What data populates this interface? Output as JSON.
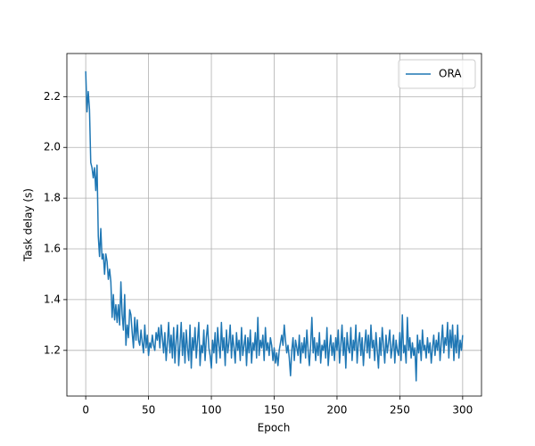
{
  "chart_data": {
    "type": "line",
    "xlabel": "Epoch",
    "ylabel": "Task delay (s)",
    "xlim": [
      -15,
      315
    ],
    "ylim": [
      1.02,
      2.37
    ],
    "xticks": [
      0,
      50,
      100,
      150,
      200,
      250,
      300
    ],
    "yticks": [
      1.2,
      1.4,
      1.6,
      1.8,
      {
        "value": 2,
        "label": "2.0"
      },
      2.2
    ],
    "grid": true,
    "legend": "upper right",
    "x": [
      0,
      1,
      2,
      3,
      4,
      5,
      6,
      7,
      8,
      9,
      10,
      11,
      12,
      13,
      14,
      15,
      16,
      17,
      18,
      19,
      20,
      21,
      22,
      23,
      24,
      25,
      26,
      27,
      28,
      29,
      30,
      31,
      32,
      33,
      34,
      35,
      36,
      37,
      38,
      39,
      40,
      41,
      42,
      43,
      44,
      45,
      46,
      47,
      48,
      49,
      50,
      51,
      52,
      53,
      54,
      55,
      56,
      57,
      58,
      59,
      60,
      61,
      62,
      63,
      64,
      65,
      66,
      67,
      68,
      69,
      70,
      71,
      72,
      73,
      74,
      75,
      76,
      77,
      78,
      79,
      80,
      81,
      82,
      83,
      84,
      85,
      86,
      87,
      88,
      89,
      90,
      91,
      92,
      93,
      94,
      95,
      96,
      97,
      98,
      99,
      100,
      101,
      102,
      103,
      104,
      105,
      106,
      107,
      108,
      109,
      110,
      111,
      112,
      113,
      114,
      115,
      116,
      117,
      118,
      119,
      120,
      121,
      122,
      123,
      124,
      125,
      126,
      127,
      128,
      129,
      130,
      131,
      132,
      133,
      134,
      135,
      136,
      137,
      138,
      139,
      140,
      141,
      142,
      143,
      144,
      145,
      146,
      147,
      148,
      149,
      150,
      151,
      152,
      153,
      154,
      155,
      156,
      157,
      158,
      159,
      160,
      161,
      162,
      163,
      164,
      165,
      166,
      167,
      168,
      169,
      170,
      171,
      172,
      173,
      174,
      175,
      176,
      177,
      178,
      179,
      180,
      181,
      182,
      183,
      184,
      185,
      186,
      187,
      188,
      189,
      190,
      191,
      192,
      193,
      194,
      195,
      196,
      197,
      198,
      199,
      200,
      201,
      202,
      203,
      204,
      205,
      206,
      207,
      208,
      209,
      210,
      211,
      212,
      213,
      214,
      215,
      216,
      217,
      218,
      219,
      220,
      221,
      222,
      223,
      224,
      225,
      226,
      227,
      228,
      229,
      230,
      231,
      232,
      233,
      234,
      235,
      236,
      237,
      238,
      239,
      240,
      241,
      242,
      243,
      244,
      245,
      246,
      247,
      248,
      249,
      250,
      251,
      252,
      253,
      254,
      255,
      256,
      257,
      258,
      259,
      260,
      261,
      262,
      263,
      264,
      265,
      266,
      267,
      268,
      269,
      270,
      271,
      272,
      273,
      274,
      275,
      276,
      277,
      278,
      279,
      280,
      281,
      282,
      283,
      284,
      285,
      286,
      287,
      288,
      289,
      290,
      291,
      292,
      293,
      294,
      295,
      296,
      297,
      298,
      299,
      300
    ],
    "series": [
      {
        "name": "ORA",
        "color": "#1f77b4",
        "values": [
          2.3,
          2.14,
          2.22,
          2.15,
          1.94,
          1.92,
          1.88,
          1.92,
          1.83,
          1.93,
          1.65,
          1.57,
          1.68,
          1.56,
          1.58,
          1.5,
          1.58,
          1.55,
          1.48,
          1.52,
          1.47,
          1.33,
          1.42,
          1.32,
          1.38,
          1.31,
          1.38,
          1.3,
          1.47,
          1.34,
          1.28,
          1.42,
          1.22,
          1.3,
          1.25,
          1.36,
          1.34,
          1.27,
          1.21,
          1.33,
          1.24,
          1.32,
          1.24,
          1.22,
          1.28,
          1.23,
          1.19,
          1.3,
          1.21,
          1.26,
          1.18,
          1.23,
          1.21,
          1.26,
          1.22,
          1.2,
          1.27,
          1.24,
          1.29,
          1.21,
          1.3,
          1.25,
          1.19,
          1.27,
          1.16,
          1.23,
          1.31,
          1.19,
          1.26,
          1.17,
          1.29,
          1.15,
          1.24,
          1.3,
          1.14,
          1.22,
          1.31,
          1.18,
          1.27,
          1.15,
          1.28,
          1.21,
          1.16,
          1.3,
          1.13,
          1.25,
          1.2,
          1.29,
          1.17,
          1.24,
          1.31,
          1.14,
          1.22,
          1.19,
          1.28,
          1.16,
          1.25,
          1.3,
          1.21,
          1.18,
          1.13,
          1.24,
          1.19,
          1.27,
          1.15,
          1.29,
          1.22,
          1.17,
          1.31,
          1.2,
          1.25,
          1.14,
          1.28,
          1.19,
          1.23,
          1.3,
          1.17,
          1.26,
          1.21,
          1.15,
          1.27,
          1.2,
          1.24,
          1.16,
          1.29,
          1.18,
          1.22,
          1.26,
          1.14,
          1.25,
          1.19,
          1.28,
          1.15,
          1.23,
          1.2,
          1.27,
          1.17,
          1.33,
          1.18,
          1.24,
          1.21,
          1.26,
          1.16,
          1.29,
          1.2,
          1.23,
          1.18,
          1.25,
          1.22,
          1.16,
          1.21,
          1.15,
          1.19,
          1.14,
          1.2,
          1.23,
          1.26,
          1.22,
          1.3,
          1.24,
          1.19,
          1.22,
          1.17,
          1.1,
          1.2,
          1.25,
          1.16,
          1.24,
          1.21,
          1.18,
          1.26,
          1.15,
          1.23,
          1.19,
          1.25,
          1.17,
          1.28,
          1.2,
          1.14,
          1.22,
          1.33,
          1.19,
          1.25,
          1.16,
          1.23,
          1.18,
          1.27,
          1.15,
          1.22,
          1.2,
          1.24,
          1.17,
          1.29,
          1.14,
          1.21,
          1.26,
          1.18,
          1.23,
          1.16,
          1.25,
          1.2,
          1.28,
          1.15,
          1.22,
          1.3,
          1.18,
          1.25,
          1.13,
          1.27,
          1.21,
          1.19,
          1.29,
          1.16,
          1.24,
          1.2,
          1.3,
          1.15,
          1.23,
          1.27,
          1.18,
          1.25,
          1.14,
          1.22,
          1.28,
          1.19,
          1.26,
          1.17,
          1.3,
          1.21,
          1.24,
          1.16,
          1.27,
          1.2,
          1.13,
          1.25,
          1.18,
          1.29,
          1.22,
          1.15,
          1.26,
          1.19,
          1.23,
          1.28,
          1.17,
          1.21,
          1.26,
          1.15,
          1.24,
          1.2,
          1.18,
          1.27,
          1.16,
          1.34,
          1.19,
          1.22,
          1.15,
          1.33,
          1.2,
          1.25,
          1.17,
          1.23,
          1.18,
          1.21,
          1.08,
          1.26,
          1.19,
          1.24,
          1.16,
          1.28,
          1.2,
          1.22,
          1.17,
          1.25,
          1.19,
          1.23,
          1.15,
          1.21,
          1.26,
          1.18,
          1.24,
          1.2,
          1.27,
          1.16,
          1.23,
          1.3,
          1.19,
          1.25,
          1.22,
          1.31,
          1.17,
          1.28,
          1.21,
          1.3,
          1.16,
          1.26,
          1.19,
          1.3,
          1.17,
          1.24,
          1.2,
          1.26
        ]
      }
    ]
  }
}
